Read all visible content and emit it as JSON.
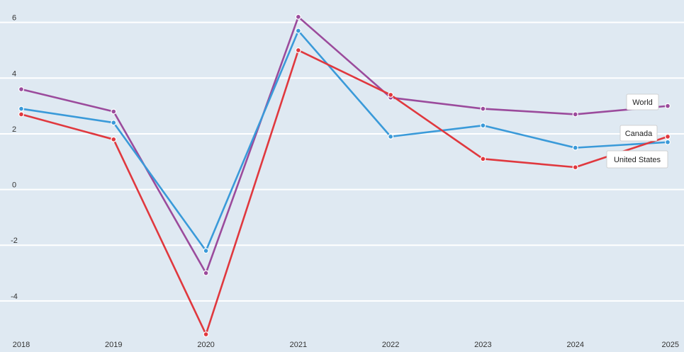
{
  "chart_data": {
    "type": "line",
    "title": "",
    "xlabel": "",
    "ylabel": "",
    "x": [
      "2018",
      "2019",
      "2020",
      "2021",
      "2022",
      "2023",
      "2024",
      "2025"
    ],
    "ylim": [
      -5.3,
      6.5
    ],
    "yticks": [
      -4,
      -2,
      0,
      2,
      4,
      6
    ],
    "grid": true,
    "legend": "inline end labels",
    "series": [
      {
        "name": "World",
        "color": "#9b4b9c",
        "values": [
          3.6,
          2.8,
          -3.0,
          6.2,
          3.3,
          2.9,
          2.7,
          3.0
        ]
      },
      {
        "name": "Canada",
        "color": "#3a9ad9",
        "values": [
          2.9,
          2.4,
          -2.2,
          5.7,
          1.9,
          2.3,
          1.5,
          1.7
        ]
      },
      {
        "name": "United States",
        "color": "#e0383e",
        "values": [
          2.7,
          1.8,
          -5.2,
          5.0,
          3.4,
          1.1,
          0.8,
          1.9
        ]
      }
    ]
  }
}
